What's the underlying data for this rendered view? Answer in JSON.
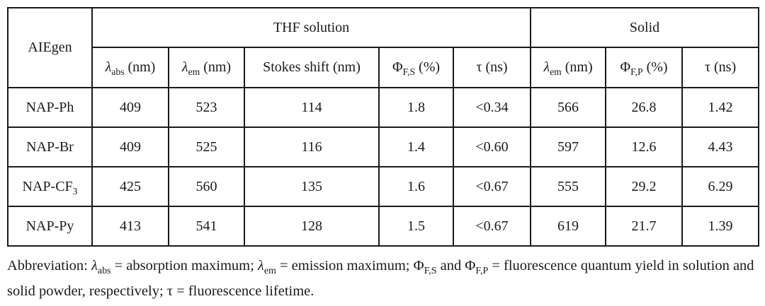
{
  "table": {
    "corner_header": "AIEgen",
    "groups": [
      {
        "label": "THF solution"
      },
      {
        "label": "Solid"
      }
    ],
    "subheaders": [
      [
        {
          "t": "λ",
          "i": true
        },
        {
          "t": "abs",
          "sub": true
        },
        {
          "t": " (nm)"
        }
      ],
      [
        {
          "t": "λ",
          "i": true
        },
        {
          "t": "em",
          "sub": true
        },
        {
          "t": " (nm)"
        }
      ],
      [
        {
          "t": "Stokes shift (nm)"
        }
      ],
      [
        {
          "t": "Φ"
        },
        {
          "t": "F,S",
          "sub": true
        },
        {
          "t": " (%)"
        }
      ],
      [
        {
          "t": "τ (ns)"
        }
      ],
      [
        {
          "t": "λ",
          "i": true
        },
        {
          "t": "em",
          "sub": true
        },
        {
          "t": " (nm)"
        }
      ],
      [
        {
          "t": "Φ"
        },
        {
          "t": "F,P",
          "sub": true
        },
        {
          "t": " (%)"
        }
      ],
      [
        {
          "t": "τ (ns)"
        }
      ]
    ],
    "rows": [
      {
        "label": [
          {
            "t": "NAP-Ph"
          }
        ],
        "values": [
          "409",
          "523",
          "114",
          "1.8",
          "<0.34",
          "566",
          "26.8",
          "1.42"
        ]
      },
      {
        "label": [
          {
            "t": "NAP-Br"
          }
        ],
        "values": [
          "409",
          "525",
          "116",
          "1.4",
          "<0.60",
          "597",
          "12.6",
          "4.43"
        ]
      },
      {
        "label": [
          {
            "t": "NAP-CF"
          },
          {
            "t": "3",
            "sub": true
          }
        ],
        "values": [
          "425",
          "560",
          "135",
          "1.6",
          "<0.67",
          "555",
          "29.2",
          "6.29"
        ]
      },
      {
        "label": [
          {
            "t": "NAP-Py"
          }
        ],
        "values": [
          "413",
          "541",
          "128",
          "1.5",
          "<0.67",
          "619",
          "21.7",
          "1.39"
        ]
      }
    ]
  },
  "footnote": {
    "segments": [
      {
        "t": "Abbreviation: "
      },
      {
        "t": "λ",
        "i": true
      },
      {
        "t": "abs",
        "sub": true
      },
      {
        "t": " = absorption maximum; "
      },
      {
        "t": "λ",
        "i": true
      },
      {
        "t": "em",
        "sub": true
      },
      {
        "t": " = emission maximum; Φ"
      },
      {
        "t": "F,S",
        "sub": true
      },
      {
        "t": " and Φ"
      },
      {
        "t": "F,P",
        "sub": true
      },
      {
        "t": " = fluorescence quantum yield in solution and solid powder, respectively; τ = fluorescence lifetime."
      }
    ]
  },
  "colors": {
    "border": "#1a1a1a",
    "text": "#1a1a1a",
    "background": "#ffffff"
  }
}
